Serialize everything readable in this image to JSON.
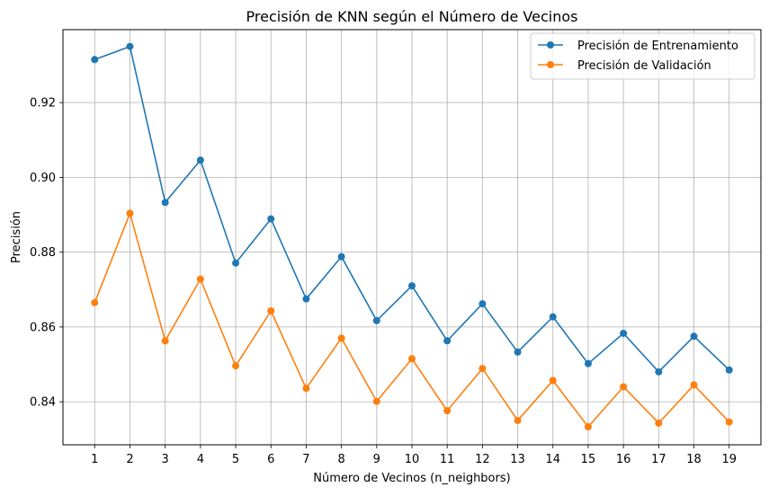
{
  "chart_data": {
    "type": "line",
    "title": "Precisión de KNN según el Número de Vecinos",
    "xlabel": "Número de Vecinos (n_neighbors)",
    "ylabel": "Precisión",
    "x": [
      1,
      2,
      3,
      4,
      5,
      6,
      7,
      8,
      9,
      10,
      11,
      12,
      13,
      14,
      15,
      16,
      17,
      18,
      19
    ],
    "xlim": [
      0.1,
      19.9
    ],
    "ylim": [
      0.8285,
      0.9395
    ],
    "yticks": [
      0.84,
      0.86,
      0.88,
      0.9,
      0.92
    ],
    "ytick_labels": [
      "0.84",
      "0.86",
      "0.88",
      "0.90",
      "0.92"
    ],
    "grid": true,
    "legend_position": "top-right",
    "series": [
      {
        "name": "Precisión de Entrenamiento",
        "color": "#1f77b4",
        "values": [
          0.9315,
          0.935,
          0.8933,
          0.9046,
          0.8771,
          0.8889,
          0.8675,
          0.8788,
          0.8617,
          0.871,
          0.8563,
          0.8662,
          0.8533,
          0.8627,
          0.8502,
          0.8583,
          0.848,
          0.8575,
          0.8485
        ]
      },
      {
        "name": "Precisión de Validación",
        "color": "#ff7f0e",
        "values": [
          0.8665,
          0.8904,
          0.8563,
          0.8728,
          0.8496,
          0.8643,
          0.8436,
          0.857,
          0.8401,
          0.8515,
          0.8376,
          0.8489,
          0.835,
          0.8457,
          0.8333,
          0.844,
          0.8343,
          0.8445,
          0.8346
        ]
      }
    ]
  }
}
